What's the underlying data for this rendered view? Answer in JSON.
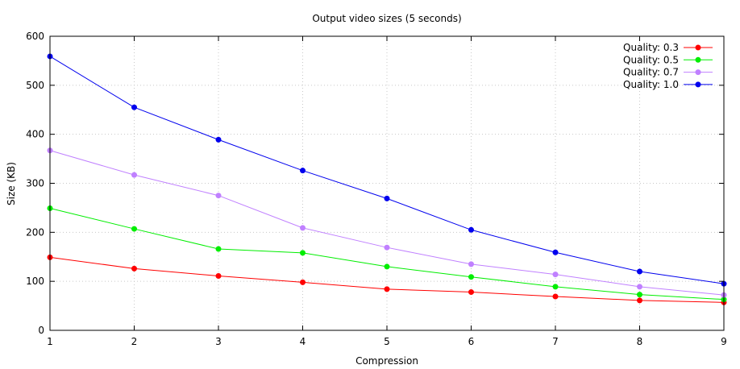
{
  "chart_data": {
    "type": "line",
    "title": "Output video sizes (5 seconds)",
    "xlabel": "Compression",
    "ylabel": "Size (KB)",
    "x": [
      1,
      2,
      3,
      4,
      5,
      6,
      7,
      8,
      9
    ],
    "xlim": [
      1,
      9
    ],
    "ylim": [
      0,
      600
    ],
    "xticks": [
      1,
      2,
      3,
      4,
      5,
      6,
      7,
      8,
      9
    ],
    "yticks": [
      0,
      100,
      200,
      300,
      400,
      500,
      600
    ],
    "grid": true,
    "legend_position": "top-right",
    "series": [
      {
        "name": "Quality: 0.3",
        "color": "#ff0000",
        "values": [
          149,
          126,
          111,
          98,
          84,
          78,
          69,
          61,
          57
        ]
      },
      {
        "name": "Quality: 0.5",
        "color": "#00ee00",
        "values": [
          249,
          207,
          166,
          158,
          130,
          109,
          89,
          73,
          63
        ]
      },
      {
        "name": "Quality: 0.7",
        "color": "#c080ff",
        "values": [
          367,
          317,
          275,
          209,
          169,
          135,
          114,
          89,
          72
        ]
      },
      {
        "name": "Quality: 1.0",
        "color": "#0000ee",
        "values": [
          559,
          455,
          389,
          326,
          269,
          205,
          159,
          120,
          95
        ]
      }
    ]
  }
}
